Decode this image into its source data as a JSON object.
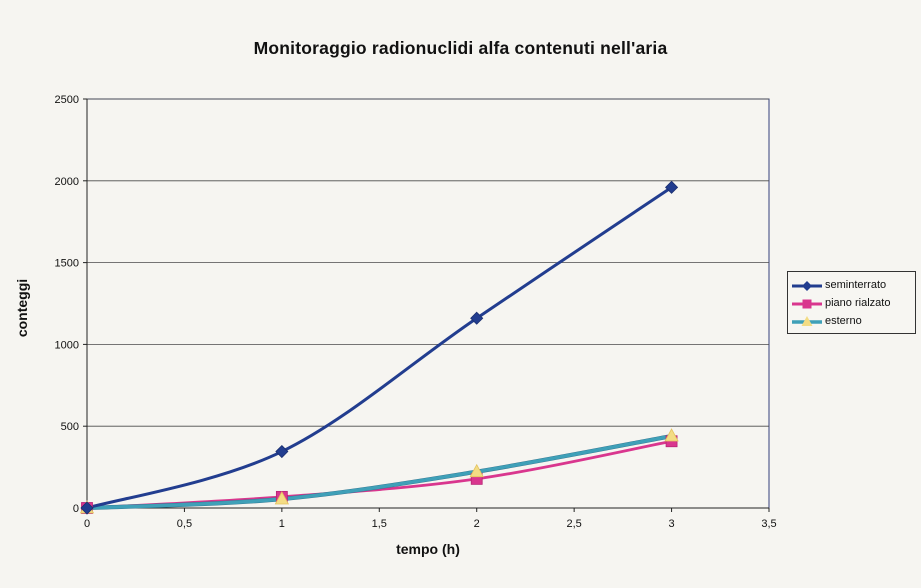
{
  "chart_data": {
    "type": "line",
    "title": "Monitoraggio radionuclidi alfa contenuti nell'aria",
    "xlabel": "tempo (h)",
    "ylabel": "conteggi",
    "xlim": [
      0,
      3.5
    ],
    "ylim": [
      0,
      2500
    ],
    "x_ticks": [
      0,
      0.5,
      1,
      1.5,
      2,
      2.5,
      3,
      3.5
    ],
    "x_tick_labels": [
      "0",
      "0,5",
      "1",
      "1,5",
      "2",
      "2,5",
      "3",
      "3,5"
    ],
    "y_ticks": [
      0,
      500,
      1000,
      1500,
      2000,
      2500
    ],
    "y_tick_labels": [
      "0",
      "500",
      "1000",
      "1500",
      "2000",
      "2500"
    ],
    "grid": "horizontal",
    "legend_position": "right",
    "smoothed": true,
    "series": [
      {
        "name": "seminterrato",
        "marker": "diamond",
        "color": "#223d8f",
        "x": [
          0,
          1,
          2,
          3
        ],
        "y": [
          0,
          345,
          1160,
          1960
        ]
      },
      {
        "name": "piano rialzato",
        "marker": "square",
        "color": "#d9368e",
        "x": [
          0,
          1,
          2,
          3
        ],
        "y": [
          0,
          68,
          178,
          408
        ]
      },
      {
        "name": "esterno",
        "marker": "triangle",
        "color": "#3fa0b8",
        "marker_fill": "#f3dc84",
        "x": [
          0,
          1,
          2,
          3
        ],
        "y": [
          0,
          55,
          222,
          440
        ]
      }
    ]
  }
}
